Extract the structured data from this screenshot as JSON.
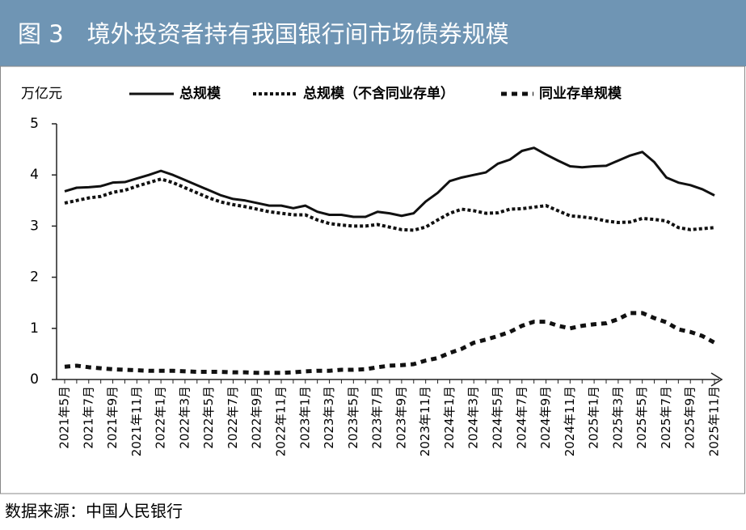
{
  "chart_data": {
    "type": "line",
    "title": "图 3　境外投资者持有我国银行间市场债券规模",
    "y_label": "万亿元",
    "source": "数据来源：中国人民银行",
    "legend": "top",
    "categories": [
      "2021年5月",
      null,
      "2021年7月",
      null,
      "2021年9月",
      null,
      "2021年11月",
      null,
      "2022年1月",
      null,
      "2022年3月",
      null,
      "2022年5月",
      null,
      "2022年7月",
      null,
      "2022年9月",
      null,
      "2022年11月",
      null,
      "2023年1月",
      null,
      "2023年3月",
      null,
      "2023年5月",
      null,
      "2023年7月",
      null,
      "2023年9月",
      null,
      "2023年11月",
      null,
      "2024年1月",
      null,
      "2024年3月",
      null,
      "2024年5月",
      null,
      "2024年7月",
      null,
      "2024年9月",
      null,
      "2024年11月",
      null,
      "2025年1月",
      null,
      "2025年3月",
      null,
      "2025年5月",
      null,
      "2025年7月",
      null,
      "2025年9月",
      null,
      "2025年11月"
    ],
    "series": [
      {
        "name": "总规模",
        "color": "#111111",
        "style": "solid",
        "values": [
          3.68,
          3.75,
          3.76,
          3.78,
          3.85,
          3.86,
          3.93,
          4.0,
          4.08,
          4.0,
          3.9,
          3.8,
          3.7,
          3.6,
          3.53,
          3.5,
          3.45,
          3.4,
          3.4,
          3.35,
          3.4,
          3.28,
          3.22,
          3.22,
          3.18,
          3.18,
          3.28,
          3.25,
          3.2,
          3.25,
          3.48,
          3.65,
          3.88,
          3.95,
          4.0,
          4.05,
          4.22,
          4.3,
          4.47,
          4.53,
          4.4,
          4.28,
          4.17,
          4.15,
          4.17,
          4.18,
          4.28,
          4.38,
          4.45,
          4.25,
          3.95,
          3.85,
          3.8,
          3.72,
          3.6
        ]
      },
      {
        "name": "总规模（不含同业存单）",
        "color": "#111111",
        "style": "dotted",
        "values": [
          3.45,
          3.5,
          3.55,
          3.58,
          3.66,
          3.7,
          3.78,
          3.85,
          3.92,
          3.85,
          3.75,
          3.65,
          3.55,
          3.47,
          3.42,
          3.38,
          3.33,
          3.28,
          3.25,
          3.22,
          3.22,
          3.12,
          3.05,
          3.02,
          3.0,
          3.0,
          3.03,
          2.98,
          2.93,
          2.92,
          2.98,
          3.12,
          3.25,
          3.33,
          3.3,
          3.25,
          3.26,
          3.33,
          3.34,
          3.37,
          3.4,
          3.3,
          3.2,
          3.18,
          3.15,
          3.1,
          3.07,
          3.08,
          3.15,
          3.13,
          3.1,
          2.97,
          2.93,
          2.95,
          2.97
        ]
      },
      {
        "name": "同业存单规模",
        "color": "#111111",
        "style": "dashed",
        "values": [
          0.25,
          0.27,
          0.24,
          0.22,
          0.2,
          0.19,
          0.18,
          0.17,
          0.17,
          0.17,
          0.16,
          0.15,
          0.15,
          0.15,
          0.14,
          0.14,
          0.13,
          0.13,
          0.13,
          0.14,
          0.16,
          0.17,
          0.17,
          0.19,
          0.19,
          0.2,
          0.24,
          0.27,
          0.28,
          0.3,
          0.37,
          0.42,
          0.52,
          0.6,
          0.72,
          0.78,
          0.85,
          0.93,
          1.05,
          1.13,
          1.13,
          1.05,
          1.0,
          1.05,
          1.08,
          1.1,
          1.18,
          1.3,
          1.3,
          1.2,
          1.12,
          0.98,
          0.93,
          0.85,
          0.72
        ]
      }
    ],
    "ylim": [
      0,
      5
    ],
    "yticks": [
      0,
      1,
      2,
      3,
      4,
      5
    ]
  }
}
